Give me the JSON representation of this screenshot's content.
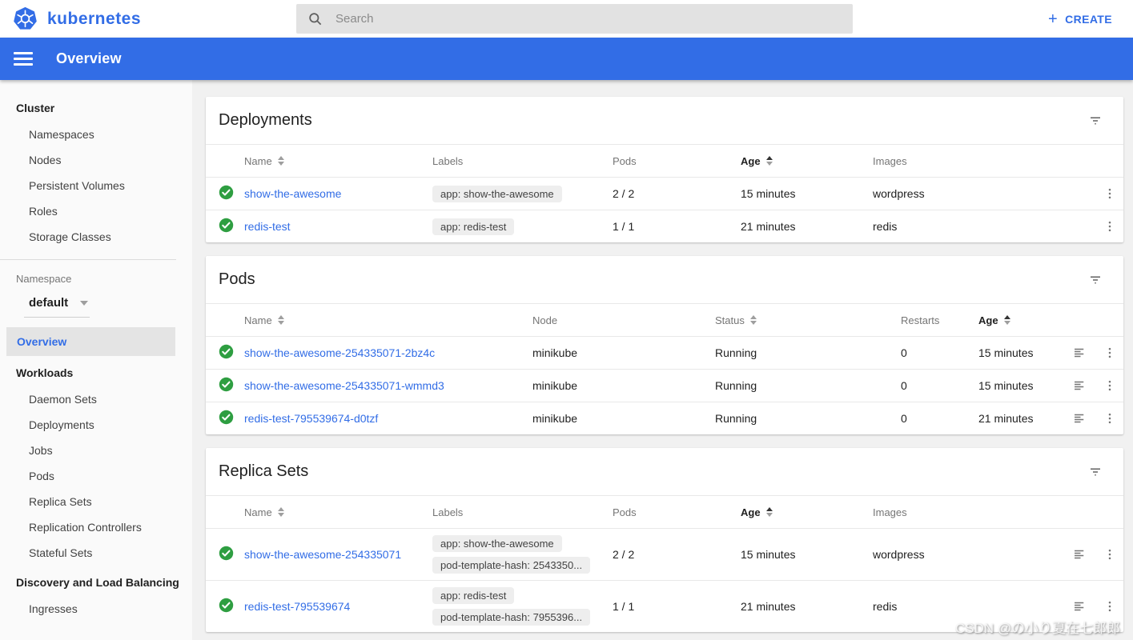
{
  "topbar": {
    "brand": "kubernetes",
    "search_placeholder": "Search",
    "create_label": "CREATE",
    "create_plus": "+"
  },
  "appbar": {
    "title": "Overview"
  },
  "sidebar": {
    "cluster_header": "Cluster",
    "cluster_items": [
      "Namespaces",
      "Nodes",
      "Persistent Volumes",
      "Roles",
      "Storage Classes"
    ],
    "namespace_label": "Namespace",
    "namespace_value": "default",
    "overview_label": "Overview",
    "workloads_header": "Workloads",
    "workloads_items": [
      "Daemon Sets",
      "Deployments",
      "Jobs",
      "Pods",
      "Replica Sets",
      "Replication Controllers",
      "Stateful Sets"
    ],
    "discovery_header": "Discovery and Load Balancing",
    "discovery_items": [
      "Ingresses"
    ]
  },
  "cards": {
    "deployments": {
      "title": "Deployments",
      "kind": "wl",
      "row_actions": [
        "menu"
      ],
      "columns": [
        {
          "label": "Name",
          "sortable": true,
          "active": false
        },
        {
          "label": "Labels",
          "sortable": false,
          "active": false
        },
        {
          "label": "Pods",
          "sortable": false,
          "active": false
        },
        {
          "label": "Age",
          "sortable": true,
          "active": true
        },
        {
          "label": "Images",
          "sortable": false,
          "active": false
        }
      ],
      "rows": [
        {
          "name": "show-the-awesome",
          "labels": [
            "app: show-the-awesome"
          ],
          "pods": "2 / 2",
          "age": "15 minutes",
          "images": "wordpress"
        },
        {
          "name": "redis-test",
          "labels": [
            "app: redis-test"
          ],
          "pods": "1 / 1",
          "age": "21 minutes",
          "images": "redis"
        }
      ]
    },
    "pods": {
      "title": "Pods",
      "kind": "pods",
      "row_actions": [
        "logs",
        "menu"
      ],
      "columns": [
        {
          "label": "Name",
          "sortable": true,
          "active": false
        },
        {
          "label": "Node",
          "sortable": false,
          "active": false
        },
        {
          "label": "Status",
          "sortable": true,
          "active": false
        },
        {
          "label": "Restarts",
          "sortable": false,
          "active": false
        },
        {
          "label": "Age",
          "sortable": true,
          "active": true
        }
      ],
      "rows": [
        {
          "name": "show-the-awesome-254335071-2bz4c",
          "node": "minikube",
          "status": "Running",
          "restarts": "0",
          "age": "15 minutes"
        },
        {
          "name": "show-the-awesome-254335071-wmmd3",
          "node": "minikube",
          "status": "Running",
          "restarts": "0",
          "age": "15 minutes"
        },
        {
          "name": "redis-test-795539674-d0tzf",
          "node": "minikube",
          "status": "Running",
          "restarts": "0",
          "age": "21 minutes"
        }
      ]
    },
    "replicasets": {
      "title": "Replica Sets",
      "kind": "wl",
      "row_actions": [
        "logs",
        "menu"
      ],
      "columns": [
        {
          "label": "Name",
          "sortable": true,
          "active": false
        },
        {
          "label": "Labels",
          "sortable": false,
          "active": false
        },
        {
          "label": "Pods",
          "sortable": false,
          "active": false
        },
        {
          "label": "Age",
          "sortable": true,
          "active": true
        },
        {
          "label": "Images",
          "sortable": false,
          "active": false
        }
      ],
      "rows": [
        {
          "name": "show-the-awesome-254335071",
          "labels": [
            "app: show-the-awesome",
            "pod-template-hash: 2543350..."
          ],
          "pods": "2 / 2",
          "age": "15 minutes",
          "images": "wordpress"
        },
        {
          "name": "redis-test-795539674",
          "labels": [
            "app: redis-test",
            "pod-template-hash: 7955396..."
          ],
          "pods": "1 / 1",
          "age": "21 minutes",
          "images": "redis"
        }
      ]
    }
  },
  "watermark": "CSDN @の小り夏在七郎郎",
  "icons": {
    "logo": "kubernetes-helm",
    "search": "magnifier",
    "create": "plus",
    "menu": "hamburger",
    "namespace": "chevron-down",
    "card_filter": "filter-list",
    "row_status": "check-circle",
    "row_logs": "text-lines",
    "row_menu": "vertical-dots",
    "sort": "up-down-triangles"
  },
  "colors": {
    "accent": "#326de6",
    "green": "#2e9e41",
    "chip_bg": "#eeeeee",
    "page_bg": "#f1f1f1",
    "sidebar_bg": "#fafafa",
    "selected_bg": "#e4e4e4",
    "text": "#212121",
    "muted": "#757575",
    "divider": "#e8e8e8",
    "search_bg": "#e2e2e2"
  }
}
